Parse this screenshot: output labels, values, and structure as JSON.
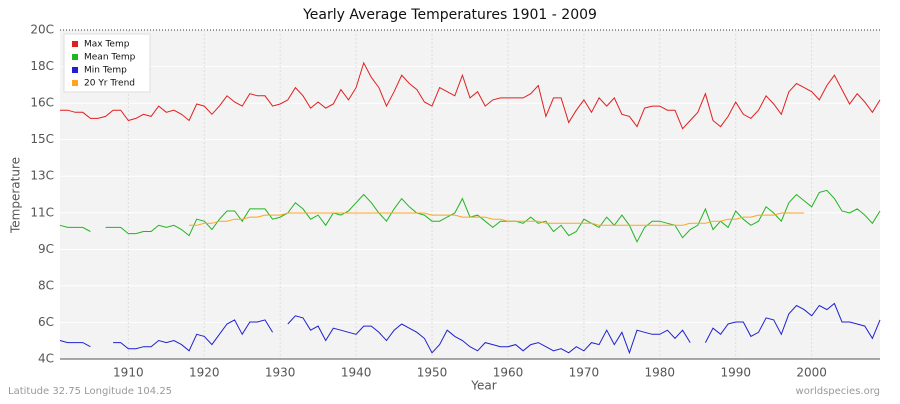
{
  "chart_data": {
    "type": "line",
    "title": "Yearly Average Temperatures 1901 - 2009",
    "xlabel": "Year",
    "ylabel": "Temperature",
    "footer_left": "Latitude 32.75 Longitude 104.25",
    "footer_right": "worldspecies.org",
    "x": [
      1901,
      1902,
      1903,
      1904,
      1905,
      1906,
      1907,
      1908,
      1909,
      1910,
      1911,
      1912,
      1913,
      1914,
      1915,
      1916,
      1917,
      1918,
      1919,
      1920,
      1921,
      1922,
      1923,
      1924,
      1925,
      1926,
      1927,
      1928,
      1929,
      1930,
      1931,
      1932,
      1933,
      1934,
      1935,
      1936,
      1937,
      1938,
      1939,
      1940,
      1941,
      1942,
      1943,
      1944,
      1945,
      1946,
      1947,
      1948,
      1949,
      1950,
      1951,
      1952,
      1953,
      1954,
      1955,
      1956,
      1957,
      1958,
      1959,
      1960,
      1961,
      1962,
      1963,
      1964,
      1965,
      1966,
      1967,
      1968,
      1969,
      1970,
      1971,
      1972,
      1973,
      1974,
      1975,
      1976,
      1977,
      1978,
      1979,
      1980,
      1981,
      1982,
      1983,
      1984,
      1985,
      1986,
      1987,
      1988,
      1989,
      1990,
      1991,
      1992,
      1993,
      1994,
      1995,
      1996,
      1997,
      1998,
      1999,
      2000,
      2001,
      2002,
      2003,
      2004,
      2005,
      2006,
      2007,
      2008,
      2009
    ],
    "series": [
      {
        "name": "Max Temp",
        "color": "#e02020",
        "values": [
          16.1,
          16.1,
          16.0,
          16.0,
          15.7,
          15.7,
          15.8,
          16.1,
          16.1,
          15.6,
          15.7,
          15.9,
          15.8,
          16.3,
          16.0,
          16.1,
          15.9,
          15.6,
          16.4,
          16.3,
          15.9,
          16.3,
          16.8,
          16.5,
          16.3,
          16.9,
          16.8,
          16.8,
          16.3,
          16.4,
          16.6,
          17.2,
          16.8,
          16.2,
          16.5,
          16.2,
          16.4,
          17.1,
          16.6,
          17.2,
          18.4,
          17.7,
          17.2,
          16.3,
          17.0,
          17.8,
          17.4,
          17.1,
          16.5,
          16.3,
          17.2,
          17.0,
          16.8,
          17.8,
          16.7,
          17.0,
          16.3,
          16.6,
          16.7,
          16.7,
          16.7,
          16.7,
          16.9,
          17.3,
          15.8,
          16.7,
          16.7,
          15.5,
          16.1,
          16.6,
          16.0,
          16.7,
          16.3,
          16.7,
          15.9,
          15.8,
          15.3,
          16.2,
          16.3,
          16.3,
          16.1,
          16.1,
          15.2,
          15.6,
          16.0,
          16.9,
          15.6,
          15.3,
          15.8,
          16.5,
          15.9,
          15.7,
          16.1,
          16.8,
          16.4,
          15.9,
          17.0,
          17.4,
          17.2,
          17.0,
          16.6,
          17.3,
          17.8,
          17.1,
          16.4,
          16.9,
          16.5,
          16.0,
          16.6
        ]
      },
      {
        "name": "Mean Temp",
        "color": "#22b522",
        "values": [
          10.5,
          10.4,
          10.4,
          10.4,
          10.2,
          null,
          10.4,
          10.4,
          10.4,
          10.1,
          10.1,
          10.2,
          10.2,
          10.5,
          10.4,
          10.5,
          10.3,
          10.0,
          10.8,
          10.7,
          10.3,
          10.8,
          11.2,
          11.2,
          10.7,
          11.3,
          11.3,
          11.3,
          10.8,
          10.9,
          11.1,
          11.6,
          11.3,
          10.8,
          11.0,
          10.5,
          11.1,
          11.0,
          11.2,
          11.6,
          12.0,
          11.6,
          11.1,
          10.7,
          11.3,
          11.8,
          11.4,
          11.1,
          11.0,
          10.7,
          10.7,
          10.9,
          11.1,
          11.8,
          10.9,
          11.0,
          10.7,
          10.4,
          10.7,
          10.7,
          10.7,
          10.6,
          10.9,
          10.6,
          10.7,
          10.2,
          10.5,
          10.0,
          10.2,
          10.8,
          10.6,
          10.4,
          10.9,
          10.5,
          11.0,
          10.5,
          9.7,
          10.4,
          10.7,
          10.7,
          10.6,
          10.5,
          9.9,
          10.3,
          10.5,
          11.3,
          10.3,
          10.7,
          10.4,
          11.2,
          10.8,
          10.5,
          10.7,
          11.4,
          11.1,
          10.7,
          11.6,
          12.0,
          11.7,
          11.4,
          12.1,
          12.2,
          11.8,
          11.2,
          11.1,
          11.3,
          11.0,
          10.6,
          11.2
        ]
      },
      {
        "name": "Min Temp",
        "color": "#2020d0",
        "values": [
          4.9,
          4.8,
          4.8,
          4.8,
          4.6,
          null,
          null,
          4.8,
          4.8,
          4.5,
          4.5,
          4.6,
          4.6,
          4.9,
          4.8,
          4.9,
          4.7,
          4.4,
          5.2,
          5.1,
          4.7,
          5.2,
          5.7,
          5.9,
          5.2,
          5.8,
          5.8,
          5.9,
          5.3,
          null,
          5.7,
          6.1,
          6.0,
          5.4,
          5.6,
          4.9,
          5.5,
          5.4,
          5.3,
          5.2,
          5.6,
          5.6,
          5.3,
          4.9,
          5.4,
          5.7,
          5.5,
          5.3,
          5.0,
          4.3,
          4.7,
          5.4,
          5.1,
          4.9,
          4.6,
          4.4,
          4.8,
          4.7,
          4.6,
          4.6,
          4.7,
          4.4,
          4.7,
          4.8,
          4.6,
          4.4,
          4.5,
          4.3,
          4.6,
          4.4,
          4.8,
          4.7,
          5.4,
          4.7,
          5.3,
          4.3,
          5.4,
          5.3,
          5.2,
          5.2,
          5.4,
          5.0,
          5.4,
          4.8,
          null,
          4.8,
          5.5,
          5.2,
          5.7,
          5.8,
          5.8,
          5.1,
          5.3,
          6.0,
          5.9,
          5.2,
          6.2,
          6.6,
          6.4,
          6.1,
          6.6,
          6.4,
          6.7,
          5.8,
          5.8,
          5.7,
          5.6,
          5.0,
          5.9
        ]
      },
      {
        "name": "20 Yr Trend",
        "color": "#ffa520",
        "values": [
          null,
          null,
          null,
          null,
          null,
          null,
          null,
          null,
          null,
          null,
          null,
          null,
          null,
          null,
          null,
          null,
          null,
          10.5,
          10.5,
          10.6,
          10.6,
          10.7,
          10.7,
          10.8,
          10.8,
          10.9,
          10.9,
          11.0,
          11.0,
          11.0,
          11.1,
          11.1,
          11.1,
          11.1,
          11.1,
          11.1,
          11.1,
          11.1,
          11.1,
          11.1,
          11.1,
          11.1,
          11.1,
          11.1,
          11.1,
          11.1,
          11.1,
          11.1,
          11.1,
          11.0,
          11.0,
          11.0,
          11.0,
          10.9,
          10.9,
          10.9,
          10.9,
          10.8,
          10.8,
          10.7,
          10.7,
          10.7,
          10.7,
          10.7,
          10.6,
          10.6,
          10.6,
          10.6,
          10.6,
          10.6,
          10.6,
          10.5,
          10.5,
          10.5,
          10.5,
          10.5,
          10.5,
          10.5,
          10.5,
          10.5,
          10.5,
          10.5,
          10.5,
          10.6,
          10.6,
          10.6,
          10.7,
          10.7,
          10.8,
          10.8,
          10.9,
          10.9,
          11.0,
          11.0,
          11.0,
          11.1,
          11.1,
          11.1,
          11.1,
          null,
          null,
          null,
          null,
          null,
          null,
          null,
          null,
          null,
          null
        ]
      }
    ],
    "xlim": [
      1901,
      2009
    ],
    "xticks": [
      1910,
      1920,
      1930,
      1940,
      1950,
      1960,
      1970,
      1980,
      1990,
      2000
    ],
    "ylim": [
      4,
      20
    ],
    "yticks": [
      {
        "value": 4,
        "label": "4C"
      },
      {
        "value": 5.78,
        "label": "6C"
      },
      {
        "value": 7.56,
        "label": "8C"
      },
      {
        "value": 9.33,
        "label": "9C"
      },
      {
        "value": 11.11,
        "label": "11C"
      },
      {
        "value": 12.89,
        "label": "13C"
      },
      {
        "value": 14.67,
        "label": "15C"
      },
      {
        "value": 16.44,
        "label": "16C"
      },
      {
        "value": 18.22,
        "label": "18C"
      },
      {
        "value": 20,
        "label": "20C"
      }
    ],
    "grid": true,
    "legend": "upper-left"
  }
}
